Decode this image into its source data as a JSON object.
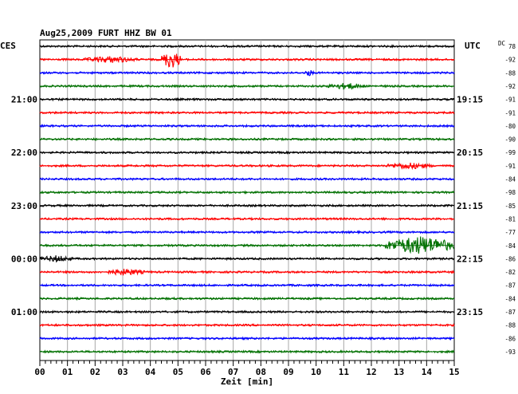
{
  "chart_data": {
    "type": "line",
    "title": "Aug25,2009  FURT HHZ BW 01",
    "left_timezone": "CES",
    "right_timezone": "UTC",
    "dc_label": "DC",
    "xlabel": "Zeit [min]",
    "xlim": [
      0,
      15
    ],
    "x_ticks": [
      "00",
      "01",
      "02",
      "03",
      "04",
      "05",
      "06",
      "07",
      "08",
      "09",
      "10",
      "11",
      "12",
      "13",
      "14",
      "15"
    ],
    "trace_colors": [
      "#000000",
      "#ff0000",
      "#0000ff",
      "#007000"
    ],
    "left_hour_labels": [
      {
        "trace": 4,
        "text": "21:00"
      },
      {
        "trace": 8,
        "text": "22:00"
      },
      {
        "trace": 12,
        "text": "23:00"
      },
      {
        "trace": 16,
        "text": "00:00"
      },
      {
        "trace": 20,
        "text": "01:00"
      }
    ],
    "right_hour_labels": [
      {
        "trace": 4,
        "text": "19:15"
      },
      {
        "trace": 8,
        "text": "20:15"
      },
      {
        "trace": 12,
        "text": "21:15"
      },
      {
        "trace": 16,
        "text": "22:15"
      },
      {
        "trace": 20,
        "text": "23:15"
      }
    ],
    "dc_offsets": [
      78,
      -92,
      -88,
      -92,
      -91,
      -91,
      -80,
      -90,
      -99,
      -91,
      -84,
      -98,
      -85,
      -81,
      -77,
      -84,
      -86,
      -82,
      -87,
      -84,
      -87,
      -88,
      -86,
      -93
    ],
    "events": [
      {
        "trace": 1,
        "minute_start": 4.4,
        "minute_end": 5.1,
        "amplitude": "large"
      },
      {
        "trace": 1,
        "minute_start": 1.6,
        "minute_end": 3.5,
        "amplitude": "medium"
      },
      {
        "trace": 2,
        "minute_start": 9.6,
        "minute_end": 9.9,
        "amplitude": "medium"
      },
      {
        "trace": 3,
        "minute_start": 10.4,
        "minute_end": 11.8,
        "amplitude": "medium"
      },
      {
        "trace": 15,
        "minute_start": 12.5,
        "minute_end": 15.0,
        "amplitude": "large"
      },
      {
        "trace": 16,
        "minute_start": 0.0,
        "minute_end": 1.2,
        "amplitude": "medium"
      },
      {
        "trace": 17,
        "minute_start": 2.4,
        "minute_end": 3.8,
        "amplitude": "medium"
      },
      {
        "trace": 9,
        "minute_start": 12.5,
        "minute_end": 14.2,
        "amplitude": "medium"
      }
    ],
    "grid": true
  }
}
